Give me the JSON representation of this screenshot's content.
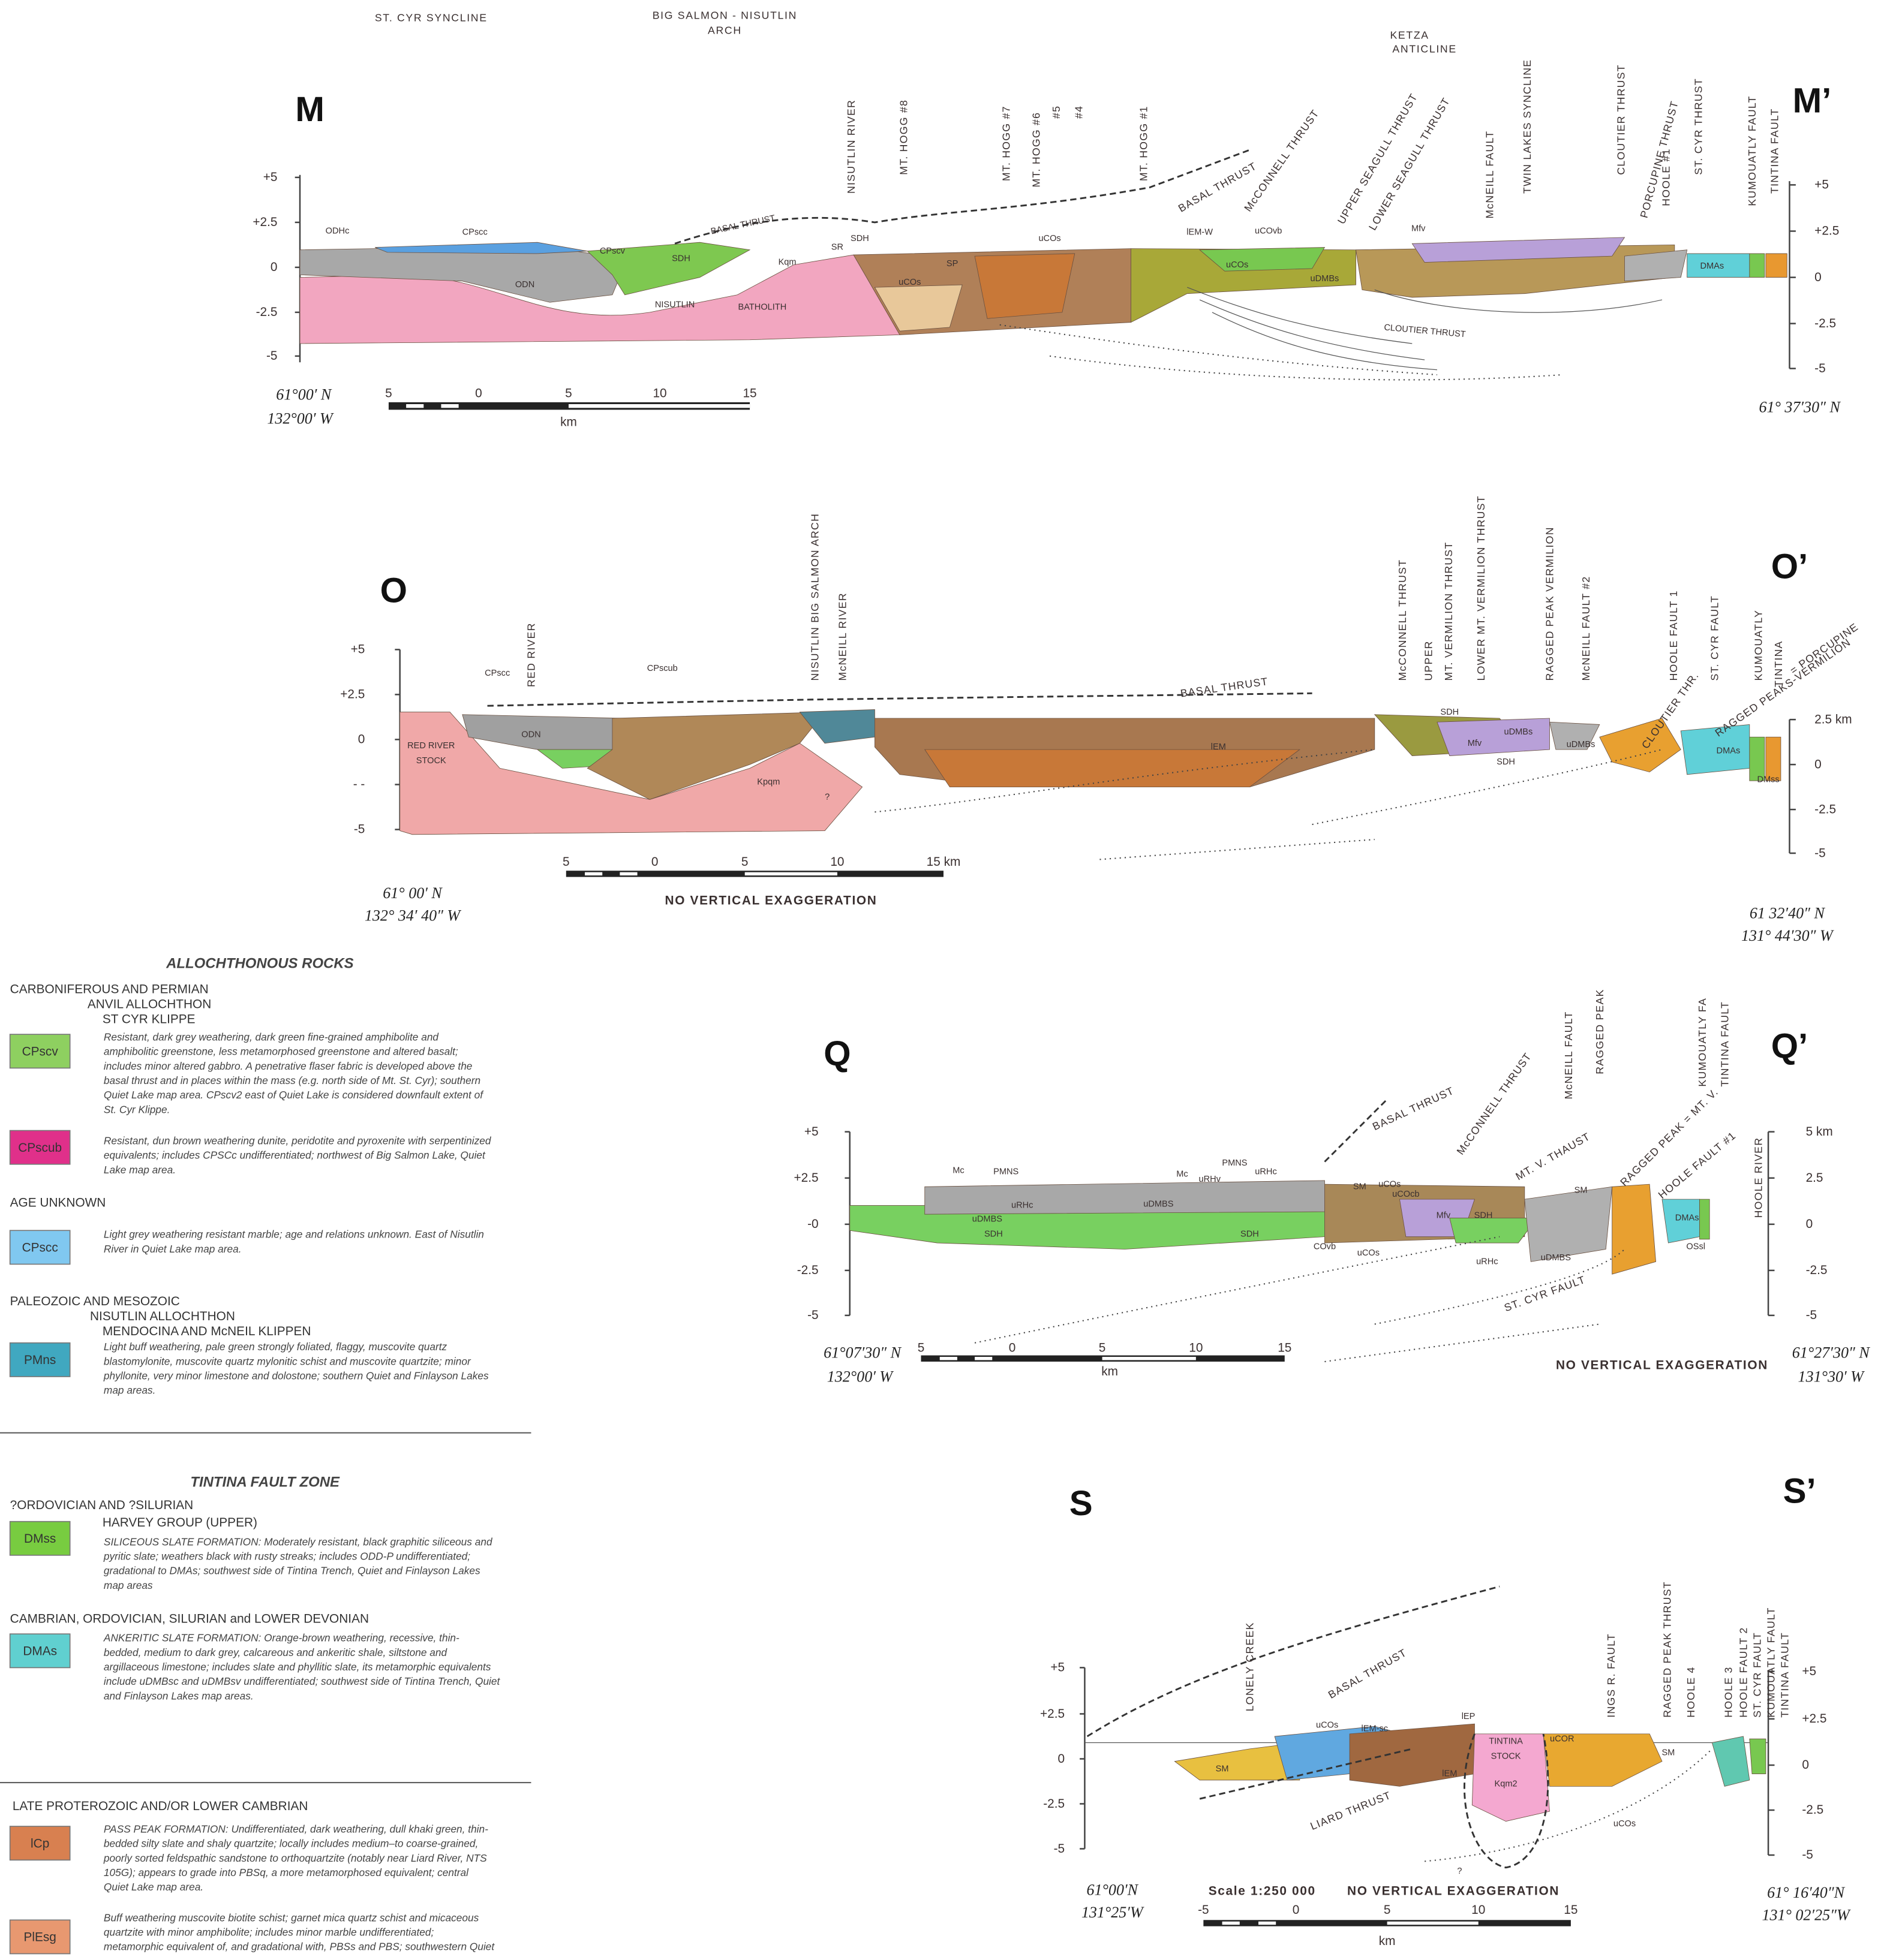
{
  "sections": [
    {
      "left_id": "M",
      "right_id": "M’",
      "structures": [
        "ST. CYR SYNCLINE",
        "BIG SALMON - NISUTLIN",
        "ARCH",
        "KETZA",
        "ANTICLINE"
      ],
      "yticks_left": [
        "+5",
        "+2.5",
        "0",
        "-2.5",
        "-5"
      ],
      "yticks_right": [
        "+5",
        "+2.5",
        "0",
        "-2.5",
        "-5"
      ],
      "coords_left": [
        "61°00′ N",
        "132°00′ W"
      ],
      "coords_right": [
        "61° 37′30″ N"
      ],
      "scale": [
        "5",
        "0",
        "5",
        "10",
        "15"
      ],
      "scale_unit": "km",
      "faults": [
        "NISUTLIN RIVER",
        "MT. HOGG #8",
        "MT. HOGG #7",
        "MT. HOGG #6",
        "#5",
        "#4",
        "MT. HOGG #1",
        "BASAL THRUST",
        "McCONNELL THRUST",
        "UPPER SEAGULL THRUST",
        "LOWER SEAGULL THRUST",
        "McNEILL FAULT",
        "TWIN LAKES SYNCLINE",
        "CLOUTIER THRUST",
        "PORCUPINE THRUST",
        "HOOLE #1",
        "ST. CYR THRUST",
        "KUMOUATLY FAULT",
        "TINTINA FAULT"
      ],
      "units": [
        "ODHc",
        "CPscc",
        "CPscv",
        "SDH",
        "Kqm",
        "ODN",
        "NISUTLIN",
        "BATHOLITH",
        "BASAL THRUST",
        "SR",
        "SDH",
        "uCOs",
        "SP",
        "uCOs",
        "uCOvb",
        "uCOs",
        "uDMBs",
        "Mfv",
        "DMAs",
        "CLOUTIER THRUST",
        "lEM-W"
      ]
    },
    {
      "left_id": "O",
      "right_id": "O’",
      "yticks_left": [
        "+5",
        "+2.5",
        "0",
        "- -",
        "-5"
      ],
      "yticks_right": [
        "2.5 km",
        "0",
        "-2.5",
        "-5"
      ],
      "coords_left": [
        "61° 00′ N",
        "132° 34′ 40″ W"
      ],
      "coords_right": [
        "61 32′40″ N",
        "131° 44′30″ W"
      ],
      "scale": [
        "5",
        "0",
        "5",
        "10",
        "15 km"
      ],
      "note": "NO VERTICAL EXAGGERATION",
      "faults": [
        "RED RIVER",
        "NISUTLIN BIG SALMON ARCH",
        "McNEILL RIVER",
        "McCONNELL THRUST",
        "UPPER",
        "MT. VERMILION THRUST",
        "LOWER MT. VERMILION THRUST",
        "RAGGED PEAK VERMILION",
        "McNEILL FAULT #2",
        "HOOLE FAULT 1",
        "ST. CYR FAULT",
        "KUMOUATLY",
        "TINTINA",
        "CLOUTIER THR.",
        "RAGGED PEAKS-VERMILION",
        "= PORCUPINE",
        "BASAL THRUST"
      ],
      "units": [
        "RED RIVER",
        "STOCK",
        "ODN",
        "CPscc",
        "CPscub",
        "Kpqm",
        "SDH",
        "lEM",
        "Mfv",
        "uDMBs",
        "SDH",
        "uDMBs",
        "DMAs",
        "DMss",
        "?"
      ]
    },
    {
      "left_id": "Q",
      "right_id": "Q’",
      "yticks_left": [
        "+5",
        "+2.5",
        "-0",
        "-2.5",
        "-5"
      ],
      "yticks_right": [
        "5 km",
        "2.5",
        "0",
        "-2.5",
        "-5"
      ],
      "coords_left": [
        "61°07′30″ N",
        "132°00′ W"
      ],
      "coords_right": [
        "61°27′30″ N",
        "131°30′ W"
      ],
      "scale": [
        "5",
        "0",
        "5",
        "10",
        "15"
      ],
      "scale_unit": "km",
      "note": "NO VERTICAL EXAGGERATION",
      "faults": [
        "BASAL THRUST",
        "McCONNELL THRUST",
        "McNEILL FAULT",
        "RAGGED PEAK",
        "MT. V. THAUST",
        "RAGGED PEAK = MT. V.",
        "HOOLE FAULT #1",
        "KUMOUATLY FA",
        "TINTINA FAULT",
        "HOOLE RIVER",
        "ST. CYR FAULT"
      ],
      "units": [
        "Mc",
        "PMNS",
        "uRHc",
        "uDMBS",
        "SDH",
        "Mc",
        "PMNS",
        "uRHv",
        "uRHc",
        "uDMBS",
        "SDH",
        "SM",
        "uCOs",
        "uCOcb",
        "Mfv",
        "SDH",
        "uDMBS",
        "uRHc",
        "COvb",
        "uCOs",
        "DMAs",
        "OSsl",
        "SM"
      ]
    },
    {
      "left_id": "S",
      "right_id": "S’",
      "yticks_left": [
        "+5",
        "+2.5",
        "0",
        "-2.5",
        "-5"
      ],
      "yticks_right": [
        "+5",
        "+2.5",
        "0",
        "-2.5",
        "-5"
      ],
      "coords_left": [
        "61°00′N",
        "131°25′W"
      ],
      "coords_right": [
        "61° 16′40″N",
        "131° 02′25″W"
      ],
      "scale_title": "Scale 1:250 000",
      "scale": [
        "-5",
        "0",
        "5",
        "10",
        "15"
      ],
      "scale_unit": "km",
      "note": "NO VERTICAL EXAGGERATION",
      "faults": [
        "LONELY CREEK",
        "BASAL THRUST",
        "LIARD THRUST",
        "INGS R. FAULT",
        "RAGGED PEAK THRUST",
        "HOOLE 4",
        "HOOLE 3",
        "HOOLE FAULT 2",
        "ST. CYR FAULT",
        "KUMOUATLY FAULT",
        "TINTINA FAULT"
      ],
      "units": [
        "SM",
        "uCOs",
        "lEM-sc",
        "lEP",
        "lEM",
        "TINTINA",
        "STOCK",
        "Kqm2",
        "uCOR",
        "SM",
        "uCOs",
        "?"
      ]
    }
  ],
  "legend": {
    "title": "ALLOCHTHONOUS ROCKS",
    "title2": "TINTINA FAULT ZONE",
    "blocks": [
      {
        "headings": [
          "CARBONIFEROUS AND PERMIAN",
          "ANVIL ALLOCHTHON",
          "ST CYR KLIPPE"
        ],
        "entries": [
          {
            "code": "CPscv",
            "color": "#8ed060",
            "description": [
              "Resistant, dark grey weathering, dark green fine-grained amphibolite and",
              "amphibolitic greenstone, less metamorphosed greenstone and altered basalt;",
              "includes minor altered gabbro. A penetrative flaser fabric is developed above the",
              "basal thrust and in places within the mass (e.g. north side of Mt. St. Cyr); southern",
              "Quiet Lake map area.  CPscv2 east of Quiet Lake is considered downfault extent of",
              "St. Cyr Klippe."
            ]
          },
          {
            "code": "CPscub",
            "color": "#e0308a",
            "description": [
              "Resistant, dun brown weathering dunite, peridotite and pyroxenite with serpentinized",
              "equivalents; includes CPSCc undifferentiated; northwest of Big Salmon Lake, Quiet",
              "Lake map area."
            ]
          }
        ]
      },
      {
        "headings": [
          "AGE UNKNOWN"
        ],
        "entries": [
          {
            "code": "CPscc",
            "color": "#80c8f0",
            "description": [
              "Light grey weathering resistant marble; age and relations unknown. East of Nisutlin",
              "River in Quiet Lake map area."
            ]
          }
        ]
      },
      {
        "headings": [
          "PALEOZOIC AND MESOZOIC",
          "NISUTLIN ALLOCHTHON",
          "MENDOCINA AND McNEIL KLIPPEN"
        ],
        "entries": [
          {
            "code": "PMns",
            "color": "#40a8c0",
            "description": [
              "Light buff weathering, pale green strongly foliated, flaggy, muscovite quartz",
              "blastomylonite, muscovite quartz mylonitic schist and muscovite quartzite; minor",
              "phyllonite, very minor limestone and dolostone; southern Quiet and Finlayson Lakes",
              "map areas."
            ]
          }
        ]
      },
      {
        "headings": [
          "?ORDOVICIAN AND ?SILURIAN",
          "HARVEY GROUP (UPPER)"
        ],
        "entries": [
          {
            "code": "DMss",
            "color": "#78cc40",
            "description": [
              "SILICEOUS SLATE FORMATION: Moderately resistant, black graphitic siliceous and",
              "pyritic slate; weathers black with rusty streaks; includes   ODD-P undifferentiated;",
              "gradational to DMAs; southwest side of Tintina Trench, Quiet and Finlayson Lakes",
              "map areas"
            ]
          }
        ]
      },
      {
        "headings": [
          "CAMBRIAN, ORDOVICIAN, SILURIAN and LOWER DEVONIAN"
        ],
        "entries": [
          {
            "code": "DMAs",
            "color": "#60d0d0",
            "description": [
              "ANKERITIC SLATE FORMATION: Orange-brown weathering, recessive, thin-",
              "bedded, medium to dark grey, calcareous and ankeritic shale, siltstone and",
              "argillaceous limestone; includes slate and phyllitic slate, its metamorphic equivalents",
              "include uDMBsc and uDMBsv undifferentiated; southwest side of Tintina Trench, Quiet",
              "and Finlayson Lakes map areas."
            ]
          }
        ]
      },
      {
        "headings": [
          "LATE PROTEROZOIC AND/OR LOWER CAMBRIAN"
        ],
        "entries": [
          {
            "code": "lCp",
            "color": "#d88050",
            "description": [
              "PASS PEAK FORMATION: Undifferentiated, dark weathering, dull khaki green, thin-",
              "bedded silty slate and shaly quartzite; locally includes medium–to coarse-grained,",
              "poorly sorted feldspathic sandstone to orthoquartzite (notably near Liard River, NTS",
              "105G); appears to grade into PBSq, a more metamorphosed equivalent; central",
              "Quiet Lake map area."
            ]
          },
          {
            "code": "PlEsg",
            "color": "#e89870",
            "description": [
              "Buff weathering muscovite biotite schist; garnet mica quartz schist and micaceous",
              "quartzite with minor amphibolite; includes minor marble undifferentiated;",
              "metamorphic equivalent of, and gradational with,   PBSs and PBS; southwestern Quiet"
            ]
          }
        ]
      }
    ]
  }
}
